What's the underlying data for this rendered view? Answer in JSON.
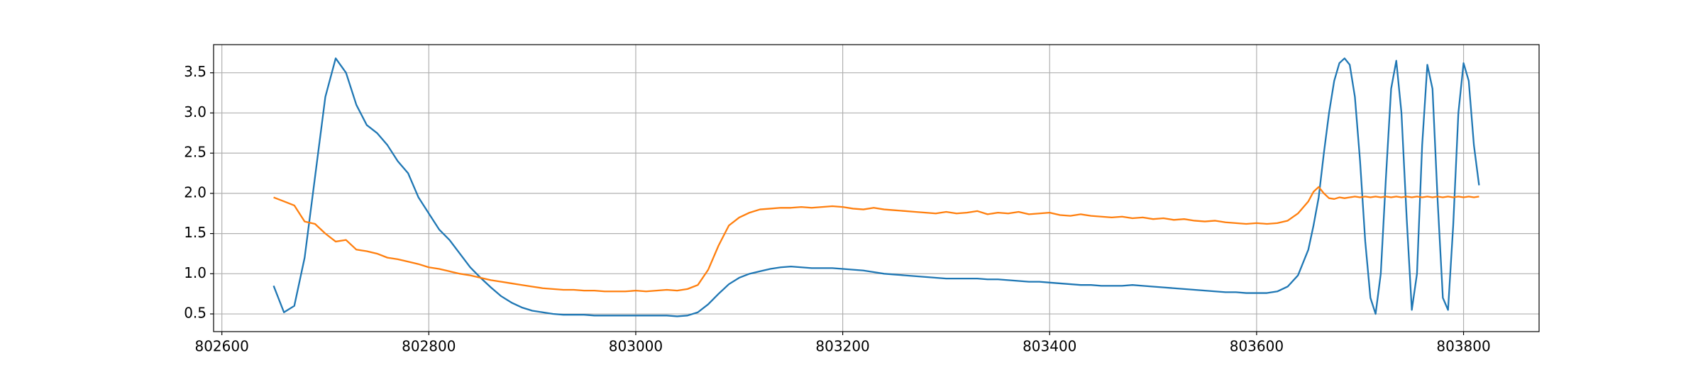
{
  "chart_data": {
    "type": "line",
    "x": [
      802650,
      802660,
      802670,
      802680,
      802690,
      802700,
      802710,
      802720,
      802730,
      802740,
      802750,
      802760,
      802770,
      802780,
      802790,
      802800,
      802810,
      802820,
      802830,
      802840,
      802850,
      802860,
      802870,
      802880,
      802890,
      802900,
      802910,
      802920,
      802930,
      802940,
      802950,
      802960,
      802970,
      802980,
      802990,
      803000,
      803010,
      803020,
      803030,
      803040,
      803050,
      803060,
      803070,
      803080,
      803090,
      803100,
      803110,
      803120,
      803130,
      803140,
      803150,
      803160,
      803170,
      803180,
      803190,
      803200,
      803210,
      803220,
      803230,
      803240,
      803250,
      803260,
      803270,
      803280,
      803290,
      803300,
      803310,
      803320,
      803330,
      803340,
      803350,
      803360,
      803370,
      803380,
      803390,
      803400,
      803410,
      803420,
      803430,
      803440,
      803450,
      803460,
      803470,
      803480,
      803490,
      803500,
      803510,
      803520,
      803530,
      803540,
      803550,
      803560,
      803570,
      803580,
      803590,
      803600,
      803610,
      803620,
      803630,
      803640,
      803650,
      803655,
      803660,
      803665,
      803670,
      803675,
      803680,
      803685,
      803690,
      803695,
      803700,
      803705,
      803710,
      803715,
      803720,
      803725,
      803730,
      803735,
      803740,
      803745,
      803750,
      803755,
      803760,
      803765,
      803770,
      803775,
      803780,
      803785,
      803790,
      803795,
      803800,
      803805,
      803810,
      803815
    ],
    "series": [
      {
        "color": "#1f77b4",
        "values": [
          0.85,
          0.52,
          0.6,
          1.2,
          2.2,
          3.2,
          3.68,
          3.5,
          3.1,
          2.85,
          2.75,
          2.6,
          2.4,
          2.25,
          1.95,
          1.75,
          1.55,
          1.42,
          1.25,
          1.08,
          0.95,
          0.83,
          0.72,
          0.64,
          0.58,
          0.54,
          0.52,
          0.5,
          0.49,
          0.49,
          0.49,
          0.48,
          0.48,
          0.48,
          0.48,
          0.48,
          0.48,
          0.48,
          0.48,
          0.47,
          0.48,
          0.52,
          0.62,
          0.75,
          0.87,
          0.95,
          1.0,
          1.03,
          1.06,
          1.08,
          1.09,
          1.08,
          1.07,
          1.07,
          1.07,
          1.06,
          1.05,
          1.04,
          1.02,
          1.0,
          0.99,
          0.98,
          0.97,
          0.96,
          0.95,
          0.94,
          0.94,
          0.94,
          0.94,
          0.93,
          0.93,
          0.92,
          0.91,
          0.9,
          0.9,
          0.89,
          0.88,
          0.87,
          0.86,
          0.86,
          0.85,
          0.85,
          0.85,
          0.86,
          0.85,
          0.84,
          0.83,
          0.82,
          0.81,
          0.8,
          0.79,
          0.78,
          0.77,
          0.77,
          0.76,
          0.76,
          0.76,
          0.78,
          0.84,
          0.98,
          1.3,
          1.6,
          1.95,
          2.5,
          3.0,
          3.4,
          3.62,
          3.68,
          3.6,
          3.2,
          2.4,
          1.4,
          0.7,
          0.5,
          1.0,
          2.2,
          3.3,
          3.65,
          3.0,
          1.7,
          0.55,
          1.0,
          2.6,
          3.6,
          3.3,
          1.9,
          0.7,
          0.55,
          1.6,
          3.0,
          3.62,
          3.4,
          2.6,
          2.1
        ]
      },
      {
        "color": "#ff7f0e",
        "values": [
          1.95,
          1.9,
          1.85,
          1.65,
          1.62,
          1.5,
          1.4,
          1.42,
          1.3,
          1.28,
          1.25,
          1.2,
          1.18,
          1.15,
          1.12,
          1.08,
          1.06,
          1.03,
          1.0,
          0.98,
          0.95,
          0.92,
          0.9,
          0.88,
          0.86,
          0.84,
          0.82,
          0.81,
          0.8,
          0.8,
          0.79,
          0.79,
          0.78,
          0.78,
          0.78,
          0.79,
          0.78,
          0.79,
          0.8,
          0.79,
          0.81,
          0.86,
          1.05,
          1.35,
          1.6,
          1.7,
          1.76,
          1.8,
          1.81,
          1.82,
          1.82,
          1.83,
          1.82,
          1.83,
          1.84,
          1.83,
          1.81,
          1.8,
          1.82,
          1.8,
          1.79,
          1.78,
          1.77,
          1.76,
          1.75,
          1.77,
          1.75,
          1.76,
          1.78,
          1.74,
          1.76,
          1.75,
          1.77,
          1.74,
          1.75,
          1.76,
          1.73,
          1.72,
          1.74,
          1.72,
          1.71,
          1.7,
          1.71,
          1.69,
          1.7,
          1.68,
          1.69,
          1.67,
          1.68,
          1.66,
          1.65,
          1.66,
          1.64,
          1.63,
          1.62,
          1.63,
          1.62,
          1.63,
          1.66,
          1.75,
          1.9,
          2.02,
          2.08,
          2.0,
          1.94,
          1.93,
          1.95,
          1.94,
          1.95,
          1.96,
          1.95,
          1.96,
          1.95,
          1.96,
          1.95,
          1.96,
          1.95,
          1.96,
          1.95,
          1.96,
          1.95,
          1.96,
          1.95,
          1.96,
          1.95,
          1.96,
          1.95,
          1.96,
          1.95,
          1.96,
          1.95,
          1.96,
          1.95,
          1.96
        ]
      }
    ],
    "xlim": [
      802592,
      803873
    ],
    "ylim": [
      0.28,
      3.85
    ],
    "xticks": [
      802600,
      802800,
      803000,
      803200,
      803400,
      803600,
      803800
    ],
    "yticks": [
      0.5,
      {
        "value": 1,
        "label": "1.0"
      },
      1.5,
      {
        "value": 2,
        "label": "2.0"
      },
      2.5,
      {
        "value": 3,
        "label": "3.0"
      },
      3.5
    ],
    "grid": true
  }
}
